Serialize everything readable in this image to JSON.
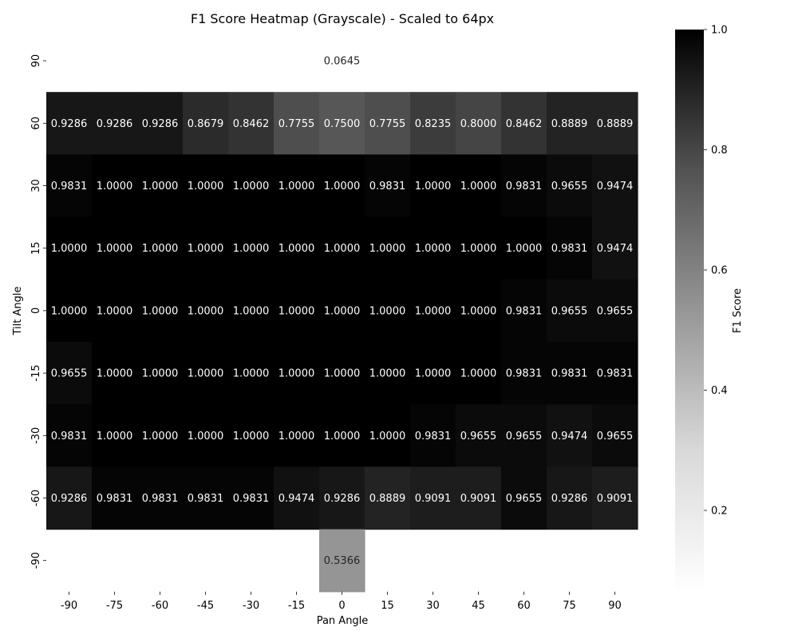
{
  "chart_data": {
    "type": "heatmap",
    "title": "F1 Score Heatmap (Grayscale) - Scaled to 64px",
    "xlabel": "Pan Angle",
    "ylabel": "Tilt Angle",
    "x_categories": [
      "-90",
      "-75",
      "-60",
      "-45",
      "-30",
      "-15",
      "0",
      "15",
      "30",
      "45",
      "60",
      "75",
      "90"
    ],
    "y_categories": [
      "90",
      "60",
      "30",
      "15",
      "0",
      "-15",
      "-30",
      "-60",
      "-90"
    ],
    "values": [
      [
        null,
        null,
        null,
        null,
        null,
        null,
        0.0645,
        null,
        null,
        null,
        null,
        null,
        null
      ],
      [
        0.9286,
        0.9286,
        0.9286,
        0.8679,
        0.8462,
        0.7755,
        0.75,
        0.7755,
        0.8235,
        0.8,
        0.8462,
        0.8889,
        0.8889
      ],
      [
        0.9831,
        1.0,
        1.0,
        1.0,
        1.0,
        1.0,
        1.0,
        0.9831,
        1.0,
        1.0,
        0.9831,
        0.9655,
        0.9474
      ],
      [
        1.0,
        1.0,
        1.0,
        1.0,
        1.0,
        1.0,
        1.0,
        1.0,
        1.0,
        1.0,
        1.0,
        0.9831,
        0.9474
      ],
      [
        1.0,
        1.0,
        1.0,
        1.0,
        1.0,
        1.0,
        1.0,
        1.0,
        1.0,
        1.0,
        0.9831,
        0.9655,
        0.9655
      ],
      [
        0.9655,
        1.0,
        1.0,
        1.0,
        1.0,
        1.0,
        1.0,
        1.0,
        1.0,
        1.0,
        0.9831,
        0.9831,
        0.9831
      ],
      [
        0.9831,
        1.0,
        1.0,
        1.0,
        1.0,
        1.0,
        1.0,
        1.0,
        0.9831,
        0.9655,
        0.9655,
        0.9474,
        0.9655
      ],
      [
        0.9286,
        0.9831,
        0.9831,
        0.9831,
        0.9831,
        0.9474,
        0.9286,
        0.8889,
        0.9091,
        0.9091,
        0.9655,
        0.9286,
        0.9091
      ],
      [
        null,
        null,
        null,
        null,
        null,
        null,
        0.5366,
        null,
        null,
        null,
        null,
        null,
        null
      ]
    ],
    "value_format_decimals": 4,
    "colormap": "Greys",
    "colorbar": {
      "label": "F1 Score",
      "range": [
        0.0645,
        1.0
      ],
      "ticks": [
        0.2,
        0.4,
        0.6,
        0.8,
        1.0
      ],
      "tick_labels": [
        "0.2",
        "0.4",
        "0.6",
        "0.8",
        "1.0"
      ]
    },
    "grid": false,
    "legend": "colorbar-right"
  }
}
